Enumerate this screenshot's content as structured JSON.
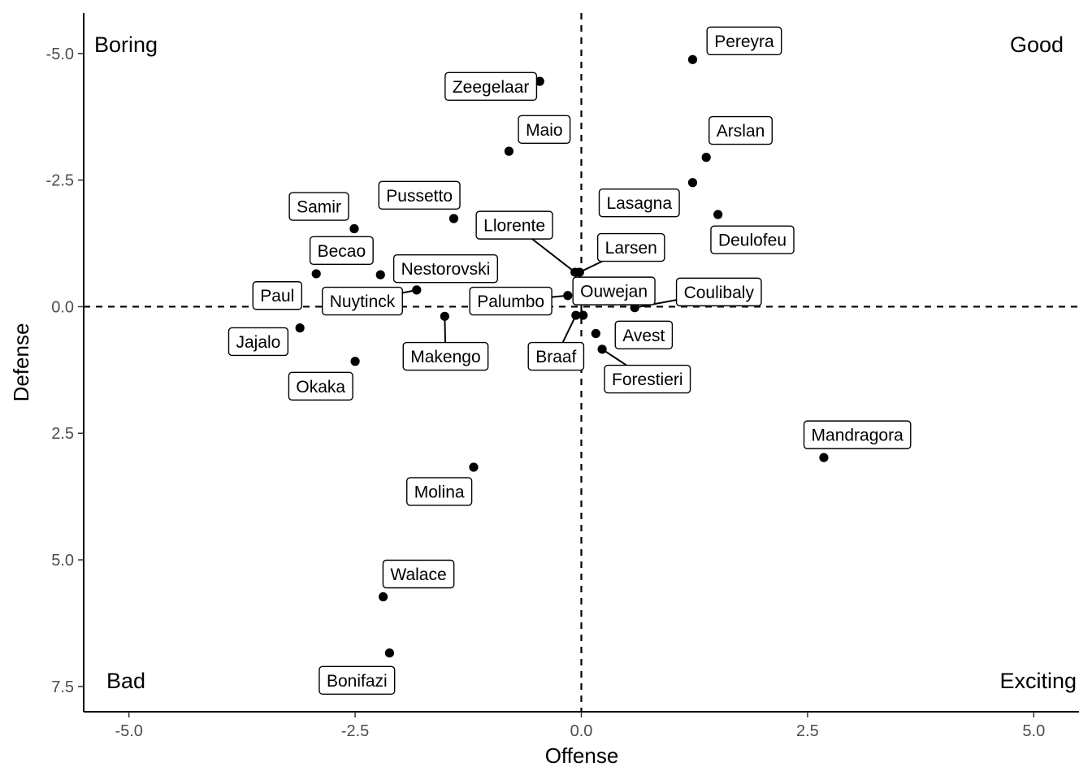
{
  "chart_data": {
    "type": "scatter",
    "xlabel": "Offense",
    "ylabel": "Defense",
    "xlim": [
      -5.5,
      5.5
    ],
    "ylim": [
      -5.8,
      8.0
    ],
    "y_reversed": true,
    "x_ticks": [
      -5.0,
      -2.5,
      0.0,
      2.5,
      5.0
    ],
    "y_ticks": [
      -5.0,
      -2.5,
      0.0,
      2.5,
      5.0,
      7.5
    ],
    "x_tick_labels": [
      "-5.0",
      "-2.5",
      "0.0",
      "2.5",
      "5.0"
    ],
    "y_tick_labels": [
      "-5.0",
      "-2.5",
      "0.0",
      "2.5",
      "5.0",
      "7.5"
    ],
    "reference_lines": {
      "x": 0,
      "y": 0,
      "style": "dashed"
    },
    "grid": false,
    "quadrant_labels": {
      "top_left": "Boring",
      "top_right": "Good",
      "bottom_left": "Bad",
      "bottom_right": "Exciting"
    },
    "points": [
      {
        "name": "Pereyra",
        "x": 1.23,
        "y": -4.88
      },
      {
        "name": "Zeegelaar",
        "x": -0.46,
        "y": -4.45
      },
      {
        "name": "Maio",
        "x": -0.8,
        "y": -3.07
      },
      {
        "name": "Arslan",
        "x": 1.38,
        "y": -2.95
      },
      {
        "name": "Lasagna",
        "x": 1.23,
        "y": -2.45
      },
      {
        "name": "Deulofeu",
        "x": 1.51,
        "y": -1.82
      },
      {
        "name": "Pussetto",
        "x": -1.41,
        "y": -1.74
      },
      {
        "name": "Samir",
        "x": -2.51,
        "y": -1.54
      },
      {
        "name": "Llorente",
        "x": -0.07,
        "y": -0.68
      },
      {
        "name": "Larsen",
        "x": -0.02,
        "y": -0.68
      },
      {
        "name": "Becao",
        "x": -2.93,
        "y": -0.65
      },
      {
        "name": "Nestorovski",
        "x": -2.22,
        "y": -0.63
      },
      {
        "name": "Nuytinck",
        "x": -1.82,
        "y": -0.33
      },
      {
        "name": "Palumbo",
        "x": -0.15,
        "y": -0.22
      },
      {
        "name": "Ouwejan",
        "x": -0.03,
        "y": -0.22
      },
      {
        "name": "Coulibaly",
        "x": 0.59,
        "y": 0.02
      },
      {
        "name": "Makengo",
        "x": -1.51,
        "y": 0.19
      },
      {
        "name": "Braaf",
        "x": -0.06,
        "y": 0.17
      },
      {
        "name": "Paul",
        "x": 0.02,
        "y": 0.17
      },
      {
        "name": "Jajalo",
        "x": -3.11,
        "y": 0.42
      },
      {
        "name": "Avest",
        "x": 0.16,
        "y": 0.53
      },
      {
        "name": "Forestieri",
        "x": 0.23,
        "y": 0.84
      },
      {
        "name": "Okaka",
        "x": -2.5,
        "y": 1.08
      },
      {
        "name": "Mandragora",
        "x": 2.68,
        "y": 2.98
      },
      {
        "name": "Molina",
        "x": -1.19,
        "y": 3.17
      },
      {
        "name": "Walace",
        "x": -2.19,
        "y": 5.73
      },
      {
        "name": "Bonifazi",
        "x": -2.12,
        "y": 6.84
      }
    ],
    "labels": [
      {
        "text": "Pereyra",
        "pos": [
          1.8,
          -5.25
        ],
        "leader": false
      },
      {
        "text": "Zeegelaar",
        "pos": [
          -1.0,
          -4.35
        ],
        "leader": false
      },
      {
        "text": "Maio",
        "pos": [
          -0.41,
          -3.5
        ],
        "leader": false
      },
      {
        "text": "Arslan",
        "pos": [
          1.76,
          -3.48
        ],
        "leader": false
      },
      {
        "text": "Lasagna",
        "pos": [
          0.64,
          -2.05
        ],
        "leader": false
      },
      {
        "text": "Deulofeu",
        "pos": [
          1.89,
          -1.32
        ],
        "leader": false
      },
      {
        "text": "Pussetto",
        "pos": [
          -1.79,
          -2.2
        ],
        "leader": false
      },
      {
        "text": "Samir",
        "pos": [
          -2.9,
          -1.98
        ],
        "leader": false
      },
      {
        "text": "Llorente",
        "pos": [
          -0.74,
          -1.61
        ],
        "leader": true
      },
      {
        "text": "Larsen",
        "pos": [
          0.55,
          -1.17
        ],
        "leader": true
      },
      {
        "text": "Becao",
        "pos": [
          -2.65,
          -1.11
        ],
        "leader": false
      },
      {
        "text": "Nestorovski",
        "pos": [
          -1.5,
          -0.75
        ],
        "leader": false
      },
      {
        "text": "Nuytinck",
        "pos": [
          -2.42,
          -0.11
        ],
        "leader": true
      },
      {
        "text": "Palumbo",
        "pos": [
          -0.78,
          -0.11
        ],
        "leader": true
      },
      {
        "text": "Ouwejan",
        "pos": [
          0.36,
          -0.31
        ],
        "leader": false
      },
      {
        "text": "Coulibaly",
        "pos": [
          1.52,
          -0.29
        ],
        "leader": true
      },
      {
        "text": "Makengo",
        "pos": [
          -1.5,
          0.98
        ],
        "leader": true
      },
      {
        "text": "Braaf",
        "pos": [
          -0.28,
          0.98
        ],
        "leader": true
      },
      {
        "text": "Paul",
        "pos": [
          -3.36,
          -0.22
        ],
        "leader": false
      },
      {
        "text": "Jajalo",
        "pos": [
          -3.57,
          0.69
        ],
        "leader": false
      },
      {
        "text": "Avest",
        "pos": [
          0.69,
          0.56
        ],
        "leader": false
      },
      {
        "text": "Forestieri",
        "pos": [
          0.73,
          1.43
        ],
        "leader": true
      },
      {
        "text": "Okaka",
        "pos": [
          -2.88,
          1.57
        ],
        "leader": false
      },
      {
        "text": "Mandragora",
        "pos": [
          3.05,
          2.53
        ],
        "leader": false
      },
      {
        "text": "Molina",
        "pos": [
          -1.57,
          3.65
        ],
        "leader": false
      },
      {
        "text": "Walace",
        "pos": [
          -1.8,
          5.28
        ],
        "leader": false
      },
      {
        "text": "Bonifazi",
        "pos": [
          -2.48,
          7.38
        ],
        "leader": false
      }
    ]
  }
}
